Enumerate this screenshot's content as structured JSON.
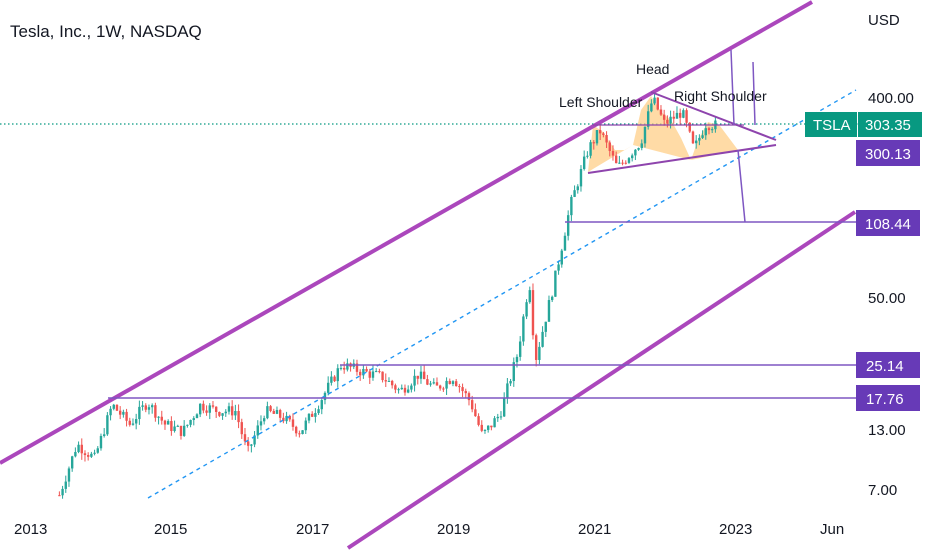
{
  "chart_title": "Tesla, Inc., 1W, NASDAQ",
  "currency": "USD",
  "chart_data": {
    "type": "line",
    "title": "Tesla, Inc., 1W, NASDAQ",
    "y_scale": "log",
    "ylabel": "USD",
    "x_ticks": [
      "2013",
      "2015",
      "2017",
      "2019",
      "2021",
      "2023",
      "Jun"
    ],
    "y_ticks": [
      "400.00",
      "50.00",
      "13.00",
      "7.00"
    ],
    "series": [
      {
        "values": [
          [
            "2013-06",
            6.5
          ],
          [
            "2013-09",
            11
          ],
          [
            "2013-12",
            9.5
          ],
          [
            "2014-03",
            16.5
          ],
          [
            "2014-06",
            13.5
          ],
          [
            "2014-09",
            17
          ],
          [
            "2014-12",
            13.5
          ],
          [
            "2015-03",
            12.5
          ],
          [
            "2015-06",
            16.5
          ],
          [
            "2015-09",
            15.5
          ],
          [
            "2015-12",
            15.5
          ],
          [
            "2016-02",
            10
          ],
          [
            "2016-05",
            15.5
          ],
          [
            "2016-08",
            14.5
          ],
          [
            "2016-11",
            12.5
          ],
          [
            "2017-02",
            16.5
          ],
          [
            "2017-06",
            25
          ],
          [
            "2017-09",
            23.5
          ],
          [
            "2018-01",
            22
          ],
          [
            "2018-04",
            19
          ],
          [
            "2018-07",
            22.5
          ],
          [
            "2018-10",
            19.5
          ],
          [
            "2019-01",
            22
          ],
          [
            "2019-04",
            17
          ],
          [
            "2019-06",
            12
          ],
          [
            "2019-09",
            15
          ],
          [
            "2019-12",
            28
          ],
          [
            "2020-02",
            60
          ],
          [
            "2020-03",
            26
          ],
          [
            "2020-06",
            55
          ],
          [
            "2020-09",
            130
          ],
          [
            "2020-12",
            230
          ],
          [
            "2021-02",
            280
          ],
          [
            "2021-05",
            190
          ],
          [
            "2021-09",
            250
          ],
          [
            "2021-11",
            390
          ],
          [
            "2022-01",
            300
          ],
          [
            "2022-04",
            340
          ],
          [
            "2022-06",
            230
          ],
          [
            "2022-08",
            300
          ],
          [
            "2022-10",
            295
          ]
        ]
      }
    ],
    "horizontal_levels": [
      "300.13",
      "108.44",
      "25.14",
      "17.76"
    ],
    "last_price": "303.35",
    "symbol": "TSLA",
    "annotations": [
      "Left Shoulder",
      "Head",
      "Right Shoulder"
    ],
    "grid": false
  },
  "colors": {
    "line": "#9c27b0",
    "price_tag": "#089981",
    "candle_up": "#26a69a",
    "candle_down": "#ef5350",
    "level_tag": "#673ab7",
    "pattern_fill": "#ffcc80"
  }
}
